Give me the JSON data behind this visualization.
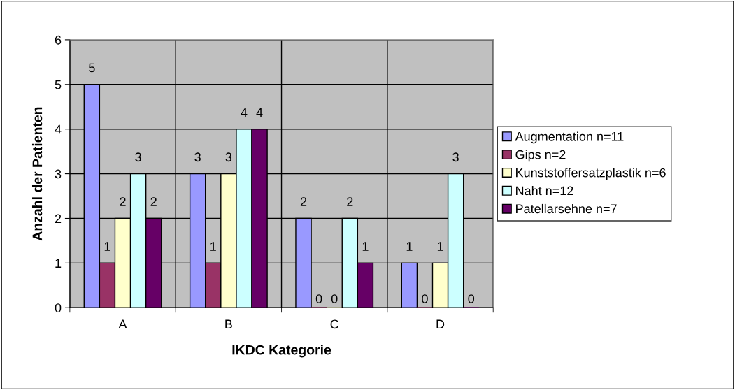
{
  "chart_data": {
    "type": "bar",
    "xlabel": "IKDC Kategorie",
    "ylabel": "Anzahl der Patienten",
    "categories": [
      "A",
      "B",
      "C",
      "D"
    ],
    "series": [
      {
        "name": "Augmentation n=11",
        "color": "#9999ff",
        "values": [
          5,
          3,
          2,
          1
        ]
      },
      {
        "name": "Gips n=2",
        "color": "#993366",
        "values": [
          1,
          1,
          0,
          0
        ]
      },
      {
        "name": "Kunststoffersatzplastik n=6",
        "color": "#ffffcc",
        "values": [
          2,
          3,
          0,
          1
        ]
      },
      {
        "name": "Naht n=12",
        "color": "#ccffff",
        "values": [
          3,
          4,
          2,
          3
        ]
      },
      {
        "name": "Patellarsehne n=7",
        "color": "#660066",
        "values": [
          2,
          4,
          1,
          0
        ]
      }
    ],
    "ylim": [
      0,
      6
    ],
    "yticks": [
      0,
      1,
      2,
      3,
      4,
      5,
      6
    ],
    "grid": true,
    "legend": "right",
    "data_labels": true
  }
}
